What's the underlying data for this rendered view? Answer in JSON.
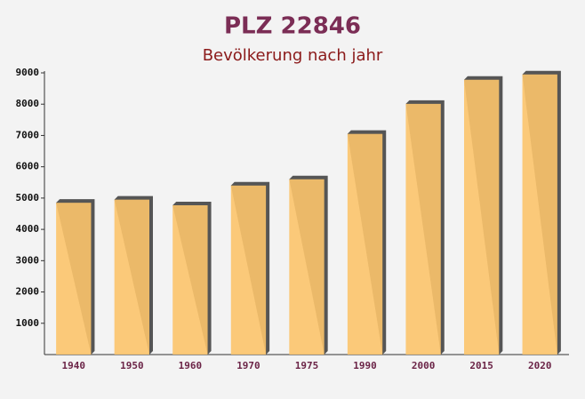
{
  "chart_data": {
    "type": "bar",
    "title": "PLZ 22846",
    "subtitle": "Bevölkerung nach jahr",
    "categories": [
      "1940",
      "1950",
      "1960",
      "1970",
      "1975",
      "1990",
      "2000",
      "2015",
      "2020"
    ],
    "values": [
      4850,
      4950,
      4770,
      5400,
      5600,
      7050,
      8010,
      8780,
      8950
    ],
    "color": "#fcc46c",
    "ylim": [
      0,
      9000
    ],
    "yticks": [
      1000,
      2000,
      3000,
      4000,
      5000,
      6000,
      7000,
      8000,
      9000
    ],
    "grid": false
  }
}
